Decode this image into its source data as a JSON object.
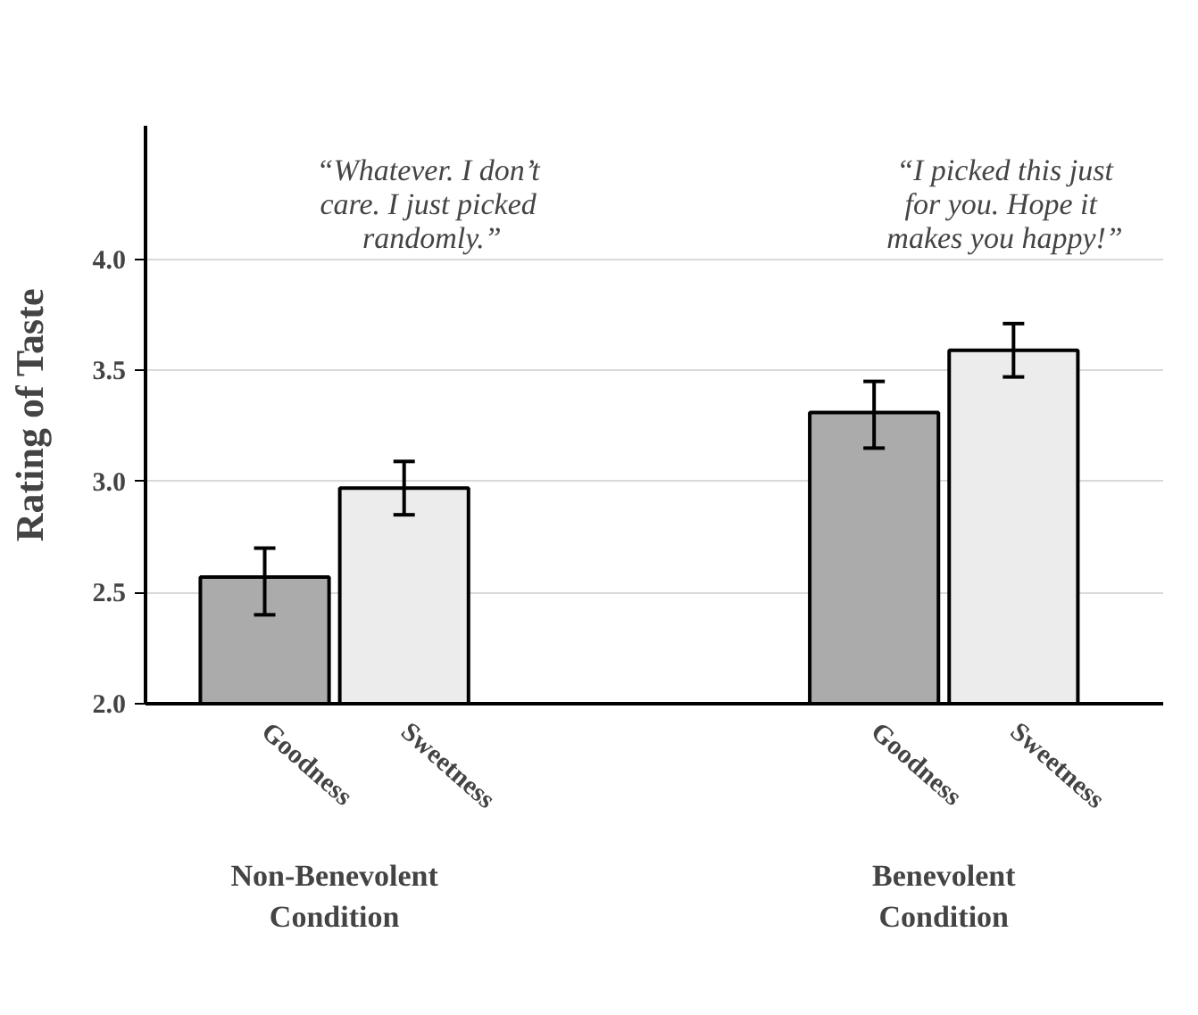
{
  "chart_data": {
    "type": "bar",
    "ylabel": "Rating of Taste",
    "categories": [
      "Non-Benevolent\nCondition",
      "Benevolent\nCondition"
    ],
    "series": [
      {
        "name": "Goodness",
        "color": "#ababab",
        "values": [
          2.57,
          3.31
        ],
        "errors": [
          [
            2.4,
            2.7
          ],
          [
            3.15,
            3.45
          ]
        ]
      },
      {
        "name": "Sweetness",
        "color": "#ececec",
        "values": [
          2.97,
          3.59
        ],
        "errors": [
          [
            2.85,
            3.09
          ],
          [
            3.47,
            3.71
          ]
        ]
      }
    ],
    "ylim": [
      2.0,
      4.6
    ],
    "yticks": [
      {
        "value": 2.0,
        "label": "2.0"
      },
      {
        "value": 2.5,
        "label": "2.5"
      },
      {
        "value": 3.0,
        "label": "3.0"
      },
      {
        "value": 3.5,
        "label": "3.5"
      },
      {
        "value": 4.0,
        "label": "4.0"
      }
    ],
    "grid": "y",
    "annotations": [
      "“Whatever.  I don’t\ncare.  I just picked\nrandomly.”",
      "“I picked this just\nfor you.  Hope it\nmakes you happy!”"
    ]
  }
}
